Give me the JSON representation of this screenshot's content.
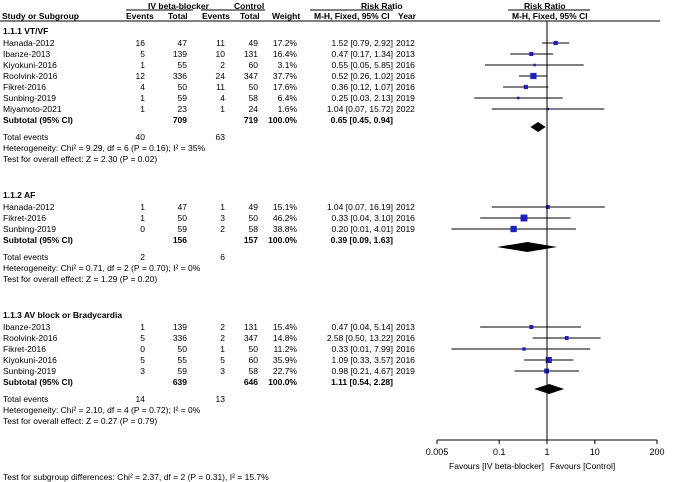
{
  "header": {
    "group1": "IV beta-blocker",
    "group2": "Control",
    "effect_title": "Risk Ratio",
    "effect_title_plot": "Risk Ratio",
    "col_study": "Study or Subgroup",
    "col_events1": "Events",
    "col_total1": "Total",
    "col_events2": "Events",
    "col_total2": "Total",
    "col_weight": "Weight",
    "col_ci": "M-H, Fixed, 95% CI",
    "col_year": "Year",
    "col_ci_plot": "M-H, Fixed, 95% CI"
  },
  "chart_data": {
    "type": "forest",
    "xscale": "log",
    "xlim": [
      0.005,
      200
    ],
    "xticks": [
      "0.005",
      "0.1",
      "1",
      "10",
      "200"
    ],
    "xtick_values": [
      0.005,
      0.1,
      1,
      10,
      200
    ],
    "favours_left": "Favours [IV beta-blocker]",
    "favours_right": "Favours [Control]",
    "subgroups": [
      {
        "title": "1.1.1 VT/VF",
        "studies": [
          {
            "name": "Hanada-2012",
            "e1": "16",
            "n1": "47",
            "e2": "11",
            "n2": "49",
            "weight": "17.2%",
            "ci": "1.52 [0.79, 2.92]",
            "year": "2012",
            "rr": 1.52,
            "lo": 0.79,
            "hi": 2.92,
            "w": 17.2
          },
          {
            "name": "Ibanze-2013",
            "e1": "5",
            "n1": "139",
            "e2": "10",
            "n2": "131",
            "weight": "16.4%",
            "ci": "0.47 [0.17, 1.34]",
            "year": "2013",
            "rr": 0.47,
            "lo": 0.17,
            "hi": 1.34,
            "w": 16.4
          },
          {
            "name": "Kiyokuni-2016",
            "e1": "1",
            "n1": "55",
            "e2": "2",
            "n2": "60",
            "weight": "3.1%",
            "ci": "0.55 [0.05, 5.85]",
            "year": "2016",
            "rr": 0.55,
            "lo": 0.05,
            "hi": 5.85,
            "w": 3.1
          },
          {
            "name": "Roolvink-2016",
            "e1": "12",
            "n1": "336",
            "e2": "24",
            "n2": "347",
            "weight": "37.7%",
            "ci": "0.52 [0.26, 1.02]",
            "year": "2016",
            "rr": 0.52,
            "lo": 0.26,
            "hi": 1.02,
            "w": 37.7
          },
          {
            "name": "Fikret-2016",
            "e1": "4",
            "n1": "50",
            "e2": "11",
            "n2": "50",
            "weight": "17.6%",
            "ci": "0.36 [0.12, 1.07]",
            "year": "2016",
            "rr": 0.36,
            "lo": 0.12,
            "hi": 1.07,
            "w": 17.6
          },
          {
            "name": "Sunbing-2019",
            "e1": "1",
            "n1": "59",
            "e2": "4",
            "n2": "58",
            "weight": "6.4%",
            "ci": "0.25 [0.03, 2.13]",
            "year": "2019",
            "rr": 0.25,
            "lo": 0.03,
            "hi": 2.13,
            "w": 6.4
          },
          {
            "name": "Miyamoto-2021",
            "e1": "1",
            "n1": "23",
            "e2": "1",
            "n2": "24",
            "weight": "1.6%",
            "ci": "1.04 [0.07, 15.72]",
            "year": "2022",
            "rr": 1.04,
            "lo": 0.07,
            "hi": 15.72,
            "w": 1.6
          }
        ],
        "subtotal": {
          "label": "Subtotal (95% CI)",
          "n1": "709",
          "n2": "719",
          "weight": "100.0%",
          "ci": "0.65 [0.45, 0.94]",
          "rr": 0.65,
          "lo": 0.45,
          "hi": 0.94
        },
        "total_events": {
          "label": "Total events",
          "e1": "40",
          "e2": "63"
        },
        "heterogeneity": "Heterogeneity: Chi² = 9.29, df = 6 (P = 0.16); I² = 35%",
        "overall": "Test for overall effect: Z = 2.30 (P = 0.02)"
      },
      {
        "title": "1.1.2 AF",
        "studies": [
          {
            "name": "Hanada-2012",
            "e1": "1",
            "n1": "47",
            "e2": "1",
            "n2": "49",
            "weight": "15.1%",
            "ci": "1.04 [0.07, 16.19]",
            "year": "2012",
            "rr": 1.04,
            "lo": 0.07,
            "hi": 16.19,
            "w": 15.1
          },
          {
            "name": "Fikret-2016",
            "e1": "1",
            "n1": "50",
            "e2": "3",
            "n2": "50",
            "weight": "46.2%",
            "ci": "0.33 [0.04, 3.10]",
            "year": "2016",
            "rr": 0.33,
            "lo": 0.04,
            "hi": 3.1,
            "w": 46.2
          },
          {
            "name": "Sunbing-2019",
            "e1": "0",
            "n1": "59",
            "e2": "2",
            "n2": "58",
            "weight": "38.8%",
            "ci": "0.20 [0.01, 4.01]",
            "year": "2019",
            "rr": 0.2,
            "lo": 0.01,
            "hi": 4.01,
            "w": 38.8
          }
        ],
        "subtotal": {
          "label": "Subtotal (95% CI)",
          "n1": "156",
          "n2": "157",
          "weight": "100.0%",
          "ci": "0.39 [0.09, 1.63]",
          "rr": 0.39,
          "lo": 0.09,
          "hi": 1.63
        },
        "total_events": {
          "label": "Total events",
          "e1": "2",
          "e2": "6"
        },
        "heterogeneity": "Heterogeneity: Chi² = 0.71, df = 2 (P = 0.70); I² = 0%",
        "overall": "Test for overall effect: Z = 1.29 (P = 0.20)"
      },
      {
        "title": "1.1.3 AV block or Bradycardia",
        "studies": [
          {
            "name": "Ibanze-2013",
            "e1": "1",
            "n1": "139",
            "e2": "2",
            "n2": "131",
            "weight": "15.4%",
            "ci": "0.47 [0.04, 5.14]",
            "year": "2013",
            "rr": 0.47,
            "lo": 0.04,
            "hi": 5.14,
            "w": 15.4
          },
          {
            "name": "Roolvink-2016",
            "e1": "5",
            "n1": "336",
            "e2": "2",
            "n2": "347",
            "weight": "14.8%",
            "ci": "2.58 [0.50, 13.22]",
            "year": "2016",
            "rr": 2.58,
            "lo": 0.5,
            "hi": 13.22,
            "w": 14.8
          },
          {
            "name": "Fikret-2016",
            "e1": "0",
            "n1": "50",
            "e2": "1",
            "n2": "50",
            "weight": "11.2%",
            "ci": "0.33 [0.01, 7.99]",
            "year": "2016",
            "rr": 0.33,
            "lo": 0.01,
            "hi": 7.99,
            "w": 11.2
          },
          {
            "name": "Kiyokuni-2016",
            "e1": "5",
            "n1": "55",
            "e2": "5",
            "n2": "60",
            "weight": "35.9%",
            "ci": "1.09 [0.33, 3.57]",
            "year": "2016",
            "rr": 1.09,
            "lo": 0.33,
            "hi": 3.57,
            "w": 35.9
          },
          {
            "name": "Sunbing-2019",
            "e1": "3",
            "n1": "59",
            "e2": "3",
            "n2": "58",
            "weight": "22.7%",
            "ci": "0.98 [0.21, 4.67]",
            "year": "2019",
            "rr": 0.98,
            "lo": 0.21,
            "hi": 4.67,
            "w": 22.7
          }
        ],
        "subtotal": {
          "label": "Subtotal (95% CI)",
          "n1": "639",
          "n2": "646",
          "weight": "100.0%",
          "ci": "1.11 [0.54, 2.28]",
          "rr": 1.11,
          "lo": 0.54,
          "hi": 2.28
        },
        "total_events": {
          "label": "Total events",
          "e1": "14",
          "e2": "13"
        },
        "heterogeneity": "Heterogeneity: Chi² = 2.10, df = 4 (P = 0.72); I² = 0%",
        "overall": "Test for overall effect: Z = 0.27 (P = 0.79)"
      }
    ],
    "subgroup_test": "Test for subgroup differences: Chi² = 2.37, df = 2 (P = 0.31), I² = 15.7%",
    "colors": {
      "marker": "#1f1fbf",
      "text": "#000000"
    }
  }
}
